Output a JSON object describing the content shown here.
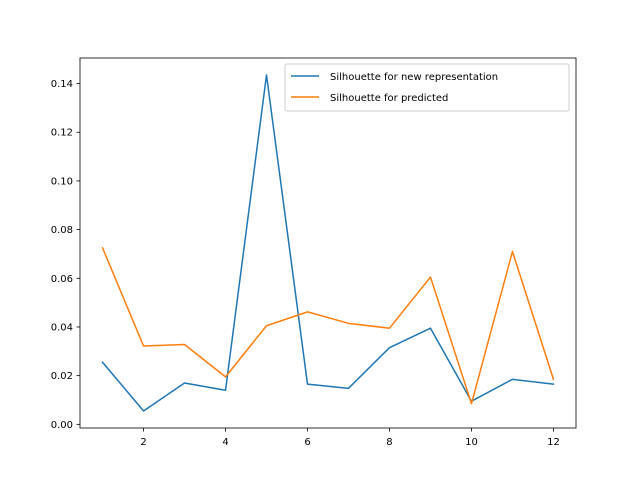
{
  "chart_data": {
    "type": "line",
    "title": "",
    "xlabel": "",
    "ylabel": "",
    "x": [
      1,
      2,
      3,
      4,
      5,
      6,
      7,
      8,
      9,
      10,
      11,
      12
    ],
    "xlim": [
      0.45,
      12.55
    ],
    "ylim": [
      -0.0015,
      0.1505
    ],
    "xticks": [
      2,
      4,
      6,
      8,
      10,
      12
    ],
    "yticks": [
      0.0,
      0.02,
      0.04,
      0.06,
      0.08,
      0.1,
      0.12,
      0.14
    ],
    "xtick_labels": [
      "2",
      "4",
      "6",
      "8",
      "10",
      "12"
    ],
    "ytick_labels": [
      "0.00",
      "0.02",
      "0.04",
      "0.06",
      "0.08",
      "0.10",
      "0.12",
      "0.14"
    ],
    "grid": false,
    "legend_position": "upper right",
    "series": [
      {
        "name": "Silhouette for new representation",
        "color": "#1f77b4",
        "values": [
          0.0255,
          0.0055,
          0.017,
          0.014,
          0.1435,
          0.0165,
          0.0148,
          0.0315,
          0.0395,
          0.0095,
          0.0185,
          0.0165
        ]
      },
      {
        "name": "Silhouette for predicted",
        "color": "#ff7f0e",
        "values": [
          0.0725,
          0.0322,
          0.0328,
          0.0195,
          0.0405,
          0.0462,
          0.0415,
          0.0395,
          0.0605,
          0.0085,
          0.071,
          0.0185
        ]
      }
    ]
  }
}
